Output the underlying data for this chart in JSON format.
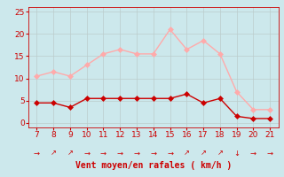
{
  "hours": [
    7,
    8,
    9,
    10,
    11,
    12,
    13,
    14,
    15,
    16,
    17,
    18,
    19,
    20,
    21
  ],
  "wind_avg": [
    4.5,
    4.5,
    3.5,
    5.5,
    5.5,
    5.5,
    5.5,
    5.5,
    5.5,
    6.5,
    4.5,
    5.5,
    1.5,
    1.0,
    1.0
  ],
  "wind_gust": [
    10.5,
    11.5,
    10.5,
    13.0,
    15.5,
    16.5,
    15.5,
    15.5,
    21.0,
    16.5,
    18.5,
    15.5,
    7.0,
    3.0,
    3.0
  ],
  "wind_avg_color": "#cc0000",
  "wind_gust_color": "#ffaaaa",
  "background_color": "#cce8ec",
  "grid_color": "#bbcccc",
  "xlabel": "Vent moyen/en rafales ( km/h )",
  "xlim": [
    6.5,
    21.5
  ],
  "ylim": [
    -1,
    26
  ],
  "yticks": [
    0,
    5,
    10,
    15,
    20,
    25
  ],
  "xticks": [
    7,
    8,
    9,
    10,
    11,
    12,
    13,
    14,
    15,
    16,
    17,
    18,
    19,
    20,
    21
  ],
  "arrow_chars": [
    "→",
    "↗",
    "↗",
    "→",
    "→",
    "→",
    "→",
    "→",
    "→",
    "↗",
    "↗",
    "↗",
    "↓",
    "→",
    "→"
  ],
  "markersize": 3,
  "linewidth": 1.0
}
